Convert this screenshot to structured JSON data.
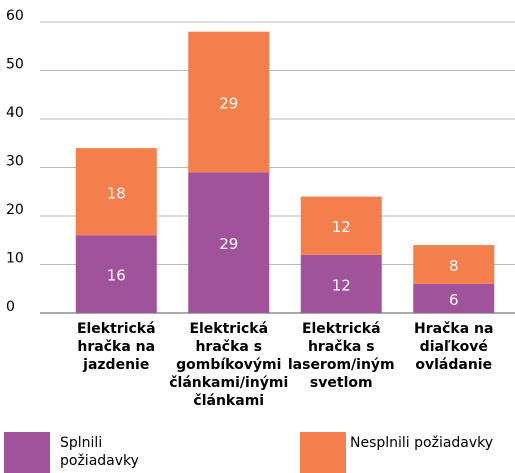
{
  "chart_data": {
    "type": "stacked_bar",
    "categories": [
      "Elektrická hračka na jazdenie",
      "Elektrická hračka s gombíkovými článkami/inými článkami",
      "Elektrická hračka s laserom/iným svetlom",
      "Hračka na diaľkové ovládanie"
    ],
    "series": [
      {
        "name": "Splnili požiadavky",
        "color": "#a0539b",
        "values": [
          16,
          29,
          12,
          6
        ]
      },
      {
        "name": "Nesplnili požiadavky",
        "color": "#f47f4c",
        "values": [
          18,
          29,
          12,
          8
        ]
      }
    ],
    "ylim": [
      0,
      60
    ],
    "yticks": [
      0,
      10,
      20,
      30,
      40,
      50,
      60
    ],
    "grid": true,
    "legend": "bottom"
  }
}
